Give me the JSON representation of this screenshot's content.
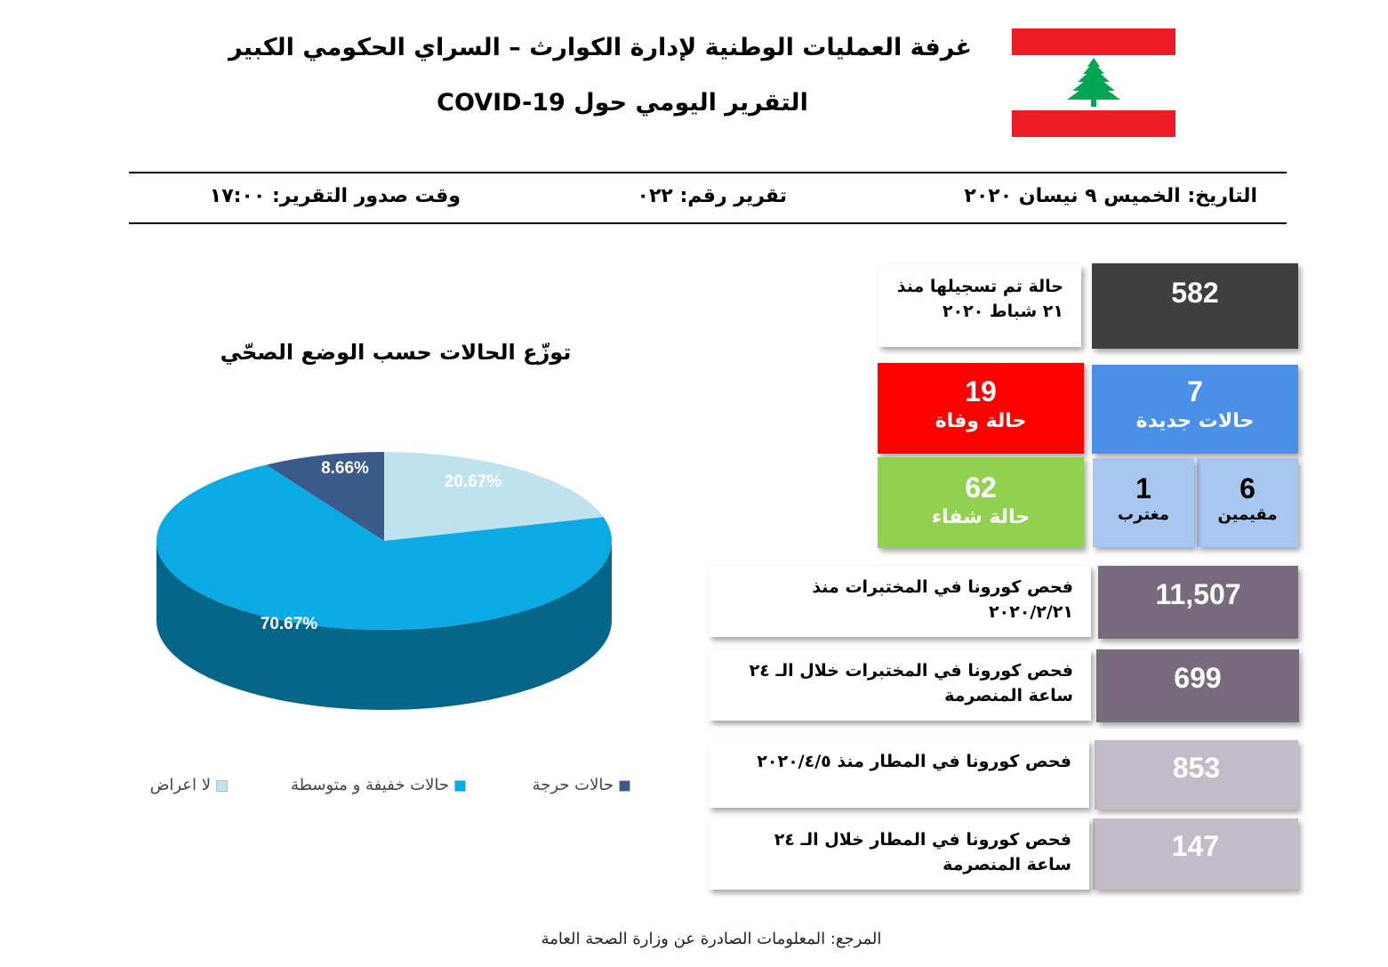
{
  "header": {
    "title_line1": "غرفة العمليات الوطنية لإدارة الكوارث – السراي الحكومي الكبير",
    "title_line2": "التقرير اليومي حول COVID-19"
  },
  "meta": {
    "date": "التاريخ: الخميس ٩ نيسان ٢٠٢٠",
    "report_number": "تقرير رقم: ٠٢٢",
    "issue_time": "وقت صدور التقرير: ١٧:٠٠"
  },
  "stats": {
    "total": {
      "value": "582",
      "label_line1": "حالة تم تسجيلها منذ",
      "label_line2": "٢١ شباط ٢٠٢٠"
    },
    "new_cases": {
      "value": "7",
      "label": "حالات جديدة"
    },
    "deaths": {
      "value": "19",
      "label": "حالة وفاة"
    },
    "residents": {
      "value": "6",
      "label": "مقيمين"
    },
    "expats": {
      "value": "1",
      "label": "مغترب"
    },
    "recovered": {
      "value": "62",
      "label": "حالة شفاء"
    },
    "lab_tests_total": {
      "value": "11,507",
      "label_line1": "فحص كورونا في المختبرات منذ",
      "label_line2": "٢٠٢٠/٢/٢١"
    },
    "lab_tests_24h": {
      "value": "699",
      "label_line1": "فحص كورونا في المختبرات خلال الـ ٢٤",
      "label_line2": "ساعة المنصرمة"
    },
    "airport_tests_total": {
      "value": "853",
      "label_line1": "فحص كورونا في المطار منذ ٢٠٢٠/٤/٥"
    },
    "airport_tests_24h": {
      "value": "147",
      "label_line1": "فحص كورونا في المطار خلال الـ ٢٤",
      "label_line2": "ساعة المنصرمة"
    }
  },
  "chart_data": {
    "type": "pie",
    "title": "توزّع الحالات حسب الوضع الصحّي",
    "slices": [
      {
        "name": "لا اعراض",
        "value": 20.67,
        "label": "20.67%",
        "color": "#bfe3ee"
      },
      {
        "name": "حالات خفيفة و متوسطة",
        "value": 70.67,
        "label": "70.67%",
        "color": "#0aaae4"
      },
      {
        "name": "حالات حرجة",
        "value": 8.66,
        "label": "8.66%",
        "color": "#3a5a8a"
      }
    ],
    "legend_placement": "bottom"
  },
  "source": "المرجع: المعلومات الصادرة عن وزارة الصحة العامة",
  "colors": {
    "dark": "#3f3f3f",
    "blue": "#4a8fe8",
    "red": "#ff0000",
    "light_blue": "#a7c6f0",
    "green": "#92d050",
    "mauve_dark": "#786b7d",
    "mauve_light": "#c2bbc8",
    "flag_red": "#ed1c24",
    "cedar_green": "#00a651"
  }
}
